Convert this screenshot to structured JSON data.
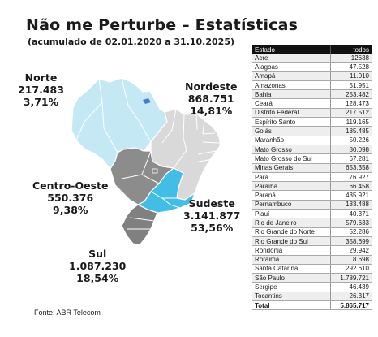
{
  "title": "Não me Perturbe – Estatísticas",
  "subtitle": "(acumulado de 02.01.2020 a 31.10.2025)",
  "source": "Fonte: ABR Telecom",
  "colors": {
    "norte": "#c5e8f5",
    "nordeste": "#d9d9d9",
    "centro_oeste": "#8c8c8c",
    "sudeste": "#41bde6",
    "sul": "#808080"
  },
  "regions": {
    "norte": {
      "name": "Norte",
      "value": "217.483",
      "percent": "3,71%"
    },
    "nordeste": {
      "name": "Nordeste",
      "value": "868.751",
      "percent": "14,81%"
    },
    "centro_oeste": {
      "name": "Centro-Oeste",
      "value": "550.376",
      "percent": "9,38%"
    },
    "sudeste": {
      "name": "Sudeste",
      "value": "3.141.877",
      "percent": "53,56%"
    },
    "sul": {
      "name": "Sul",
      "value": "1.087.230",
      "percent": "18,54%"
    }
  },
  "chart_data": {
    "type": "table",
    "columns": [
      "Estado",
      "todos"
    ],
    "rows": [
      [
        "Acre",
        "12638"
      ],
      [
        "Alagoas",
        "47.528"
      ],
      [
        "Amapá",
        "11.010"
      ],
      [
        "Amazonas",
        "51.951"
      ],
      [
        "Bahia",
        "253.482"
      ],
      [
        "Ceará",
        "128.473"
      ],
      [
        "Distrito Federal",
        "217.512"
      ],
      [
        "Espírito Santo",
        "119.165"
      ],
      [
        "Goiás",
        "185.485"
      ],
      [
        "Maranhão",
        "50.226"
      ],
      [
        "Mato Grosso",
        "80.098"
      ],
      [
        "Mato Grosso do Sul",
        "67.281"
      ],
      [
        "Minas Gerais",
        "653.358"
      ],
      [
        "Pará",
        "76.927"
      ],
      [
        "Paraíba",
        "66.458"
      ],
      [
        "Paraná",
        "435.921"
      ],
      [
        "Pernambuco",
        "183.488"
      ],
      [
        "Piauí",
        "40.371"
      ],
      [
        "Rio de Janeiro",
        "579.633"
      ],
      [
        "Rio Grande do Norte",
        "52.286"
      ],
      [
        "Rio Grande do Sul",
        "358.699"
      ],
      [
        "Rondônia",
        "29.942"
      ],
      [
        "Roraima",
        "8.698"
      ],
      [
        "Santa Catarina",
        "292.610"
      ],
      [
        "São Paulo",
        "1.789.721"
      ],
      [
        "Sergipe",
        "46.439"
      ],
      [
        "Tocantins",
        "26.317"
      ]
    ],
    "total": [
      "Total",
      "5.865.717"
    ]
  }
}
